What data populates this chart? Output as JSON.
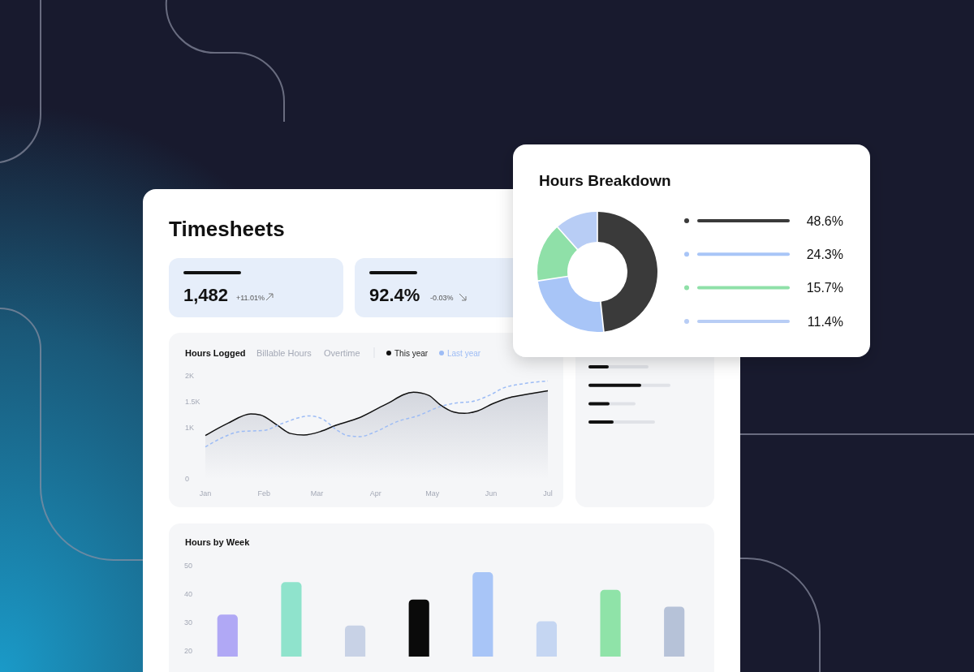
{
  "chart_data": [
    {
      "type": "other",
      "title": "Timesheets",
      "annotations": [
        "1,482",
        "+11.01%",
        "92.4%",
        "-0.03%"
      ]
    },
    {
      "type": "line",
      "title": "Hours Logged",
      "annotations": [
        "Billable Hours",
        "Overtime"
      ],
      "legend": "top",
      "xlim": [
        "--01-01",
        "--07-01"
      ],
      "xticks": [
        {
          "value": "--01-01",
          "label": "Jan"
        },
        {
          "value": "--02-01",
          "label": "Feb"
        },
        {
          "value": "--03-01",
          "label": "Mar"
        },
        {
          "value": "--04-01",
          "label": "Apr"
        },
        {
          "value": "--05-01",
          "label": "May"
        },
        {
          "value": "--06-01",
          "label": "Jun"
        },
        {
          "value": "--07-01",
          "label": "Jul"
        }
      ],
      "ylim": [
        0,
        2000
      ],
      "yticks": [
        0,
        {
          "value": 1000,
          "label": "1K"
        },
        {
          "value": 1500,
          "label": "1.5K"
        },
        {
          "value": 2000,
          "label": "2K"
        }
      ],
      "series": [
        {
          "name": "This year",
          "type": "area",
          "color": "#111111",
          "line_style": "solid",
          "x": [
            "--01-01",
            "--01-13",
            "--01-25",
            "--01-30",
            "--02-08",
            "--02-15",
            "--02-22",
            "--03-03",
            "--03-11",
            "--03-23",
            "--04-06",
            "--04-21",
            "--04-29",
            "--05-05",
            "--05-12",
            "--05-18",
            "--05-25",
            "--06-02",
            "--06-11",
            "--06-20",
            "--07-01"
          ],
          "values": [
            840,
            1080,
            1260,
            1240,
            1040,
            880,
            850,
            920,
            1040,
            1180,
            1440,
            1680,
            1620,
            1440,
            1300,
            1270,
            1320,
            1460,
            1580,
            1640,
            1710
          ]
        },
        {
          "name": "Last year",
          "type": "line",
          "color": "#9dbcf5",
          "line_style": "dashed",
          "x": [
            "--01-01",
            "--01-10",
            "--01-20",
            "--02-01",
            "--02-11",
            "--02-25",
            "--03-04",
            "--03-11",
            "--03-17",
            "--03-24",
            "--03-31",
            "--04-13",
            "--04-23",
            "--05-05",
            "--05-13",
            "--05-22",
            "--05-31",
            "--06-08",
            "--06-17",
            "--07-01"
          ],
          "values": [
            620,
            800,
            920,
            940,
            1080,
            1220,
            1160,
            960,
            840,
            820,
            900,
            1120,
            1220,
            1400,
            1470,
            1500,
            1620,
            1770,
            1840,
            1900
          ]
        }
      ]
    },
    {
      "type": "bar",
      "title": "Hours by Week",
      "categories": [
        null,
        null,
        null,
        null,
        null,
        null,
        null,
        null
      ],
      "values": [
        32.8,
        44.2,
        28.9,
        38.1,
        47.7,
        30.4,
        41.5,
        35.6
      ],
      "colors": [
        "#b0a8f5",
        "#8fe3cc",
        "#c8d2e6",
        "#0a0a0a",
        "#a8c5f7",
        "#c5d6f2",
        "#8fe3a8",
        "#b6c2d8"
      ],
      "ylim": [
        18,
        50
      ],
      "yticks": [
        20,
        30,
        40,
        50
      ]
    },
    {
      "type": "donut",
      "title": "Hours Breakdown",
      "categories": [
        null,
        null,
        null,
        null
      ],
      "values": [
        48.6,
        24.3,
        15.7,
        11.4
      ],
      "colors": [
        "#3a3a3a",
        "#a8c5f7",
        "#8fe0a8",
        "#b8cdf5"
      ],
      "annotations": [
        "48.6%",
        "24.3%",
        "15.7%",
        "11.4%"
      ]
    }
  ]
}
